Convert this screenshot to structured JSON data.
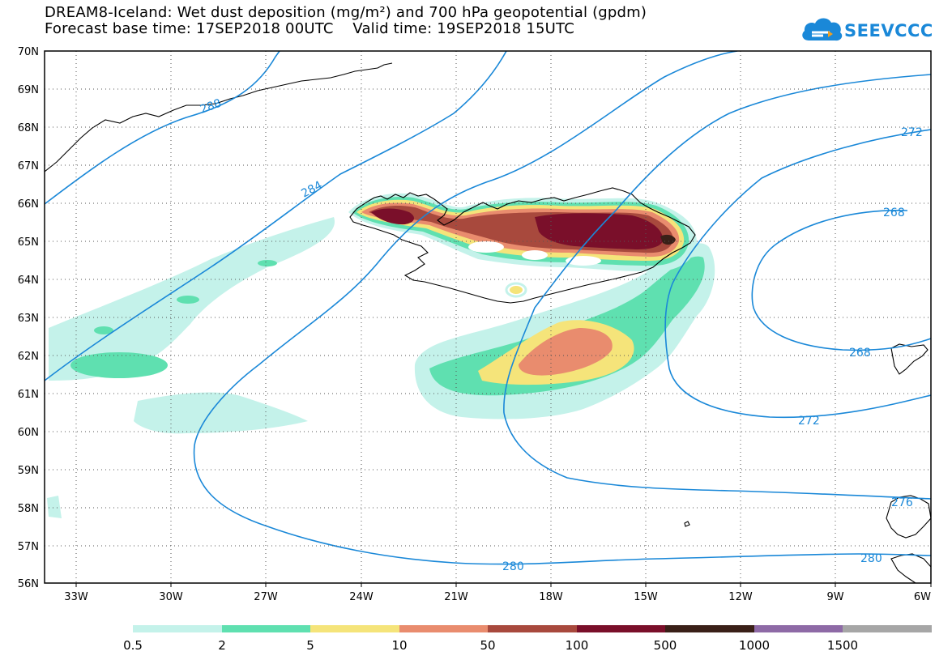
{
  "title": {
    "line1": "DREAM8-Iceland: Wet dust deposition (mg/m²) and 700 hPa geopotential (gpdm)",
    "line2": "Forecast base time: 17SEP2018 00UTC    Valid time: 19SEP2018 15UTC"
  },
  "logo": {
    "text": "SEEVCCC",
    "icon": "cloud-icon"
  },
  "axes": {
    "lat_labels": [
      "56N",
      "57N",
      "58N",
      "59N",
      "60N",
      "61N",
      "62N",
      "63N",
      "64N",
      "65N",
      "66N",
      "67N",
      "68N",
      "69N",
      "70N"
    ],
    "lon_labels": [
      "33W",
      "30W",
      "27W",
      "24W",
      "21W",
      "18W",
      "15W",
      "12W",
      "9W",
      "6W"
    ]
  },
  "contours": {
    "units": "gpdm",
    "labels": [
      "288",
      "284",
      "280",
      "280",
      "276",
      "272",
      "272",
      "268",
      "268"
    ]
  },
  "colorbar": {
    "ticks": [
      "0.5",
      "2",
      "5",
      "10",
      "50",
      "100",
      "500",
      "1000",
      "1500"
    ],
    "colors": [
      "#c4f2ea",
      "#5fe0b0",
      "#f5e47a",
      "#e98c6e",
      "#a8493d",
      "#7a0f2a",
      "#3a2018",
      "#8e6aa6",
      "#a6a6a6"
    ]
  },
  "colors": {
    "contour": "#1a88d8",
    "coast": "#000000"
  }
}
